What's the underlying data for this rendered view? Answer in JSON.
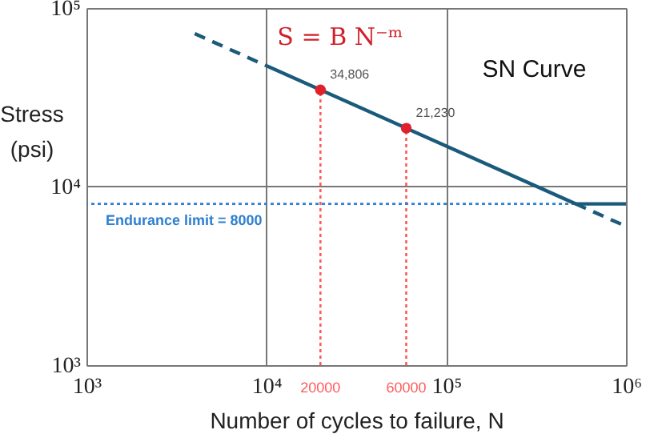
{
  "chart_data": {
    "type": "line",
    "annotations": [
      "S = B N⁻ᵐ",
      "SN Curve"
    ],
    "xlabel": "Number of cycles to failure, N",
    "ylabel": "Stress (psi)",
    "log": "xy",
    "xlim": [
      1000,
      1000000
    ],
    "ylim": [
      1000,
      100000
    ],
    "xticks": [
      {
        "value": 1000,
        "label": "10³"
      },
      {
        "value": 10000,
        "label": "10⁴"
      },
      {
        "value": 100000,
        "label": "10⁵"
      },
      {
        "value": 1000000,
        "label": "10⁶"
      }
    ],
    "yticks": [
      {
        "value": 1000,
        "label": "10³"
      },
      {
        "value": 10000,
        "label": "10⁴"
      },
      {
        "value": 100000,
        "label": "10⁵"
      }
    ],
    "grid": true,
    "series": [
      {
        "type": "line",
        "color": "#1b5a7a",
        "line_style": "solid",
        "x": [
          10000,
          525000,
          1000000
        ],
        "values": [
          47550,
          8000,
          8000
        ]
      },
      {
        "type": "line",
        "color": "#1b5a7a",
        "line_style": "dashed",
        "x": [
          4000,
          10000
        ],
        "values": [
          71800,
          47550
        ]
      },
      {
        "type": "line",
        "color": "#1b5a7a",
        "line_style": "dashed",
        "x": [
          525000,
          1000000
        ],
        "values": [
          8000,
          5990
        ]
      },
      {
        "type": "scatter",
        "color": "#e0202a",
        "marker": "circle",
        "x": [
          20000,
          60000
        ],
        "values": [
          34806,
          21230
        ],
        "value_labels": [
          "34,806",
          "21,230"
        ]
      }
    ],
    "ref_lines": [
      {
        "axis": "x",
        "value": 20000,
        "label": "20000",
        "color": "#ff5a5a",
        "line_style": "dotted"
      },
      {
        "axis": "x",
        "value": 60000,
        "label": "60000",
        "color": "#ff5a5a",
        "line_style": "dotted"
      },
      {
        "axis": "y",
        "value": 8000,
        "label": "Endurance limit = 8000",
        "color": "#2f80d0",
        "line_style": "dotted"
      }
    ]
  }
}
